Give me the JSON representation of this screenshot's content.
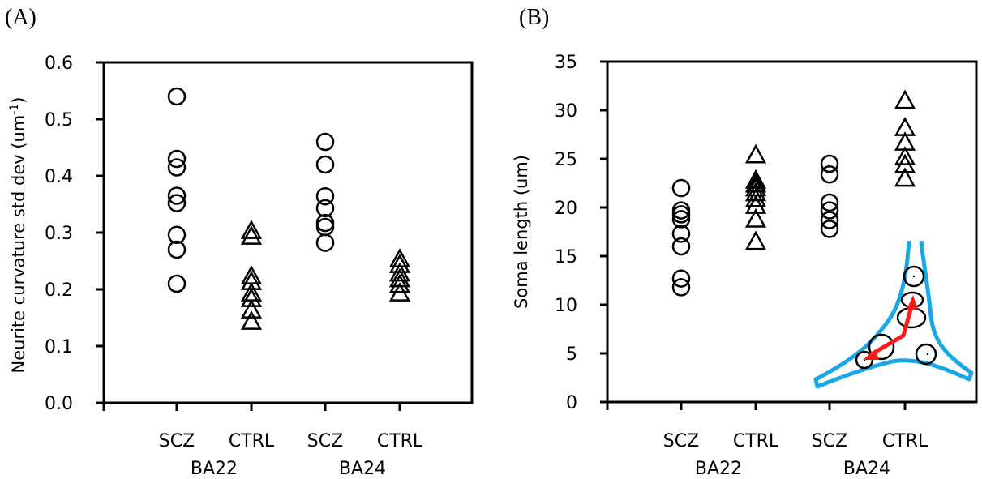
{
  "panels": [
    {
      "letter": "(A)",
      "ylabel": "Neurite curvature std dev  (um",
      "ylabel_sup": "-1",
      "ylabel_close": ")",
      "yticks": [
        "0.0",
        "0.1",
        "0.2",
        "0.3",
        "0.4",
        "0.5",
        "0.6"
      ],
      "categories": [
        "SCZ",
        "CTRL",
        "SCZ",
        "CTRL"
      ],
      "groups": [
        "BA22",
        "BA24"
      ]
    },
    {
      "letter": "(B)",
      "ylabel": "Soma length (um)",
      "yticks": [
        "0",
        "5",
        "10",
        "15",
        "20",
        "25",
        "30",
        "35"
      ],
      "categories": [
        "SCZ",
        "CTRL",
        "SCZ",
        "CTRL"
      ],
      "groups": [
        "BA22",
        "BA24"
      ]
    }
  ],
  "colors": {
    "axis": "#000000",
    "marker": "#000000",
    "inset_outline": "#1aa7e6",
    "inset_arrow": "#ff1a1a"
  },
  "chart_data": [
    {
      "type": "scatter",
      "title": "(A)",
      "xlabel": "",
      "ylabel": "Neurite curvature std dev (um^-1)",
      "ylim": [
        0,
        0.6
      ],
      "yticks": [
        0,
        0.1,
        0.2,
        0.3,
        0.4,
        0.5,
        0.6
      ],
      "categories": [
        "SCZ BA22",
        "CTRL BA22",
        "SCZ BA24",
        "CTRL BA24"
      ],
      "group_labels": [
        "BA22",
        "BA24"
      ],
      "grid": false,
      "series": [
        {
          "name": "SCZ BA22",
          "marker": "circle",
          "values": [
            0.54,
            0.43,
            0.415,
            0.365,
            0.352,
            0.296,
            0.27,
            0.21
          ]
        },
        {
          "name": "CTRL BA22",
          "marker": "triangle",
          "values": [
            0.3,
            0.29,
            0.22,
            0.21,
            0.19,
            0.18,
            0.16,
            0.14
          ]
        },
        {
          "name": "SCZ BA24",
          "marker": "circle",
          "values": [
            0.46,
            0.42,
            0.364,
            0.343,
            0.317,
            0.31,
            0.282
          ]
        },
        {
          "name": "CTRL BA24",
          "marker": "triangle",
          "values": [
            0.25,
            0.24,
            0.225,
            0.215,
            0.205,
            0.19
          ]
        }
      ]
    },
    {
      "type": "scatter",
      "title": "(B)",
      "xlabel": "",
      "ylabel": "Soma length (um)",
      "ylim": [
        0,
        35
      ],
      "yticks": [
        0,
        5,
        10,
        15,
        20,
        25,
        30,
        35
      ],
      "categories": [
        "SCZ BA22",
        "CTRL BA22",
        "SCZ BA24",
        "CTRL BA24"
      ],
      "group_labels": [
        "BA22",
        "BA24"
      ],
      "grid": false,
      "annotations": [
        "inset: soma outline (blue) with fitted circles and red arrows indicating soma length"
      ],
      "series": [
        {
          "name": "SCZ BA22",
          "marker": "circle",
          "values": [
            22.0,
            19.7,
            19.3,
            18.8,
            17.3,
            16.0,
            12.7,
            11.8
          ]
        },
        {
          "name": "CTRL BA22",
          "marker": "triangle",
          "values": [
            25.2,
            22.6,
            22.2,
            21.8,
            21.3,
            20.7,
            20.0,
            18.6,
            16.3
          ]
        },
        {
          "name": "SCZ BA24",
          "marker": "circle",
          "values": [
            24.5,
            23.4,
            20.5,
            19.7,
            18.7,
            17.8
          ]
        },
        {
          "name": "CTRL BA24",
          "marker": "triangle",
          "values": [
            30.8,
            28.0,
            26.5,
            25.0,
            24.2,
            22.8
          ]
        }
      ]
    }
  ]
}
